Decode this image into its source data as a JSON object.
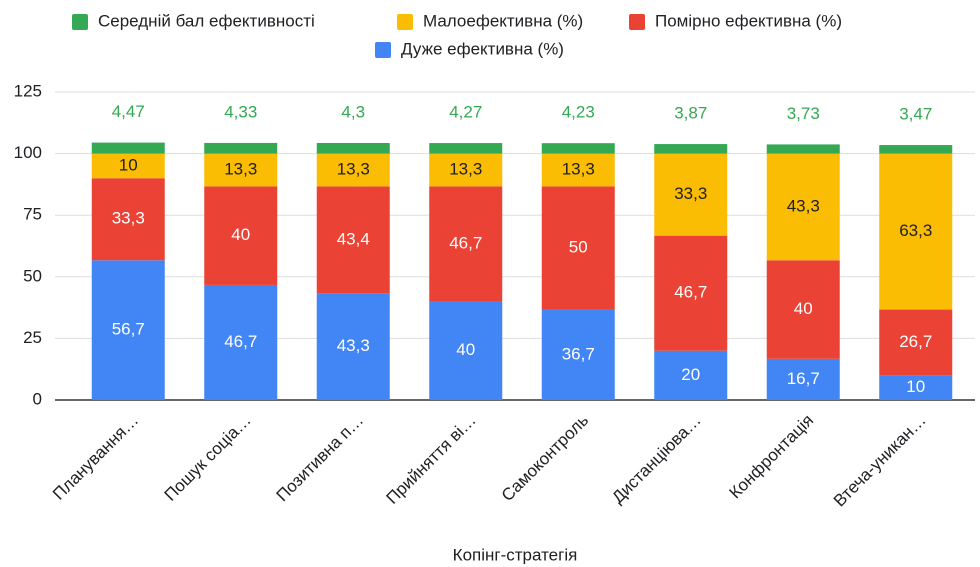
{
  "chart_data": {
    "type": "stacked_bar",
    "x_label": "Копінг-стратегія",
    "categories": [
      "Планування…",
      "Пошук соціа…",
      "Позитивна п…",
      "Прийняття ві…",
      "Самоконтроль",
      "Дистанціюва…",
      "Конфронтація",
      "Втеча-уникан…"
    ],
    "series": [
      {
        "name": "Дуже ефективна (%)",
        "color": "#4285f4",
        "label_color": "#ffffff",
        "values": [
          56.7,
          46.7,
          43.3,
          40,
          36.7,
          20,
          16.7,
          10
        ],
        "value_labels": [
          "56,7",
          "46,7",
          "43,3",
          "40",
          "36,7",
          "20",
          "16,7",
          "10"
        ]
      },
      {
        "name": "Помірно ефективна (%)",
        "color": "#ea4335",
        "label_color": "#ffffff",
        "values": [
          33.3,
          40,
          43.4,
          46.7,
          50,
          46.7,
          40,
          26.7
        ],
        "value_labels": [
          "33,3",
          "40",
          "43,4",
          "46,7",
          "50",
          "46,7",
          "40",
          "26,7"
        ]
      },
      {
        "name": "Малоефективна (%)",
        "color": "#fbbc04",
        "label_color": "#202124",
        "values": [
          10,
          13.3,
          13.3,
          13.3,
          13.3,
          33.3,
          43.3,
          63.3
        ],
        "value_labels": [
          "10",
          "13,3",
          "13,3",
          "13,3",
          "13,3",
          "33,3",
          "43,3",
          "63,3"
        ]
      },
      {
        "name": "Середній бал ефективності",
        "color": "#34a853",
        "label_color": "#34a853",
        "values": [
          4.47,
          4.33,
          4.3,
          4.27,
          4.23,
          3.87,
          3.73,
          3.47
        ],
        "value_labels": [
          "4,47",
          "4,33",
          "4,3",
          "4,27",
          "4,23",
          "3,87",
          "3,73",
          "3,47"
        ]
      }
    ],
    "ylim": [
      0,
      125
    ],
    "yticks": [
      0,
      25,
      50,
      75,
      100,
      125
    ],
    "grid": true
  }
}
